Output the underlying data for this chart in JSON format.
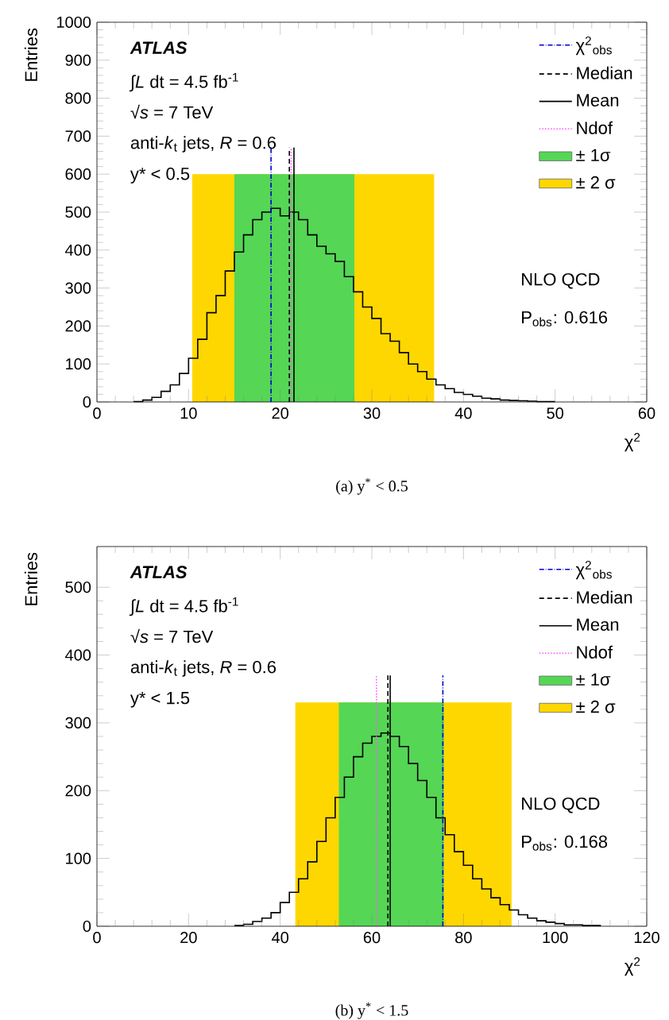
{
  "chart_data": [
    {
      "type": "histogram",
      "xlabel": "χ$^{2}$",
      "ylabel": "Entries",
      "color": "#000000",
      "bins": [
        4,
        5,
        6,
        7,
        8,
        9,
        10,
        11,
        12,
        13,
        14,
        15,
        16,
        17,
        18,
        19,
        20,
        21,
        22,
        23,
        24,
        25,
        26,
        27,
        28,
        29,
        30,
        31,
        32,
        33,
        34,
        35,
        36,
        37,
        38,
        39,
        40,
        41,
        42,
        43,
        44,
        45,
        46,
        47,
        48,
        49,
        50
      ],
      "values": [
        1,
        5,
        12,
        28,
        45,
        75,
        115,
        165,
        235,
        280,
        345,
        395,
        440,
        480,
        500,
        510,
        490,
        500,
        480,
        440,
        410,
        390,
        370,
        330,
        290,
        250,
        220,
        180,
        160,
        130,
        100,
        80,
        60,
        45,
        35,
        25,
        20,
        15,
        10,
        8,
        5,
        4,
        3,
        2,
        1,
        1
      ],
      "series": [
        {
          "name": "χ$^{2}$$_{obs}$",
          "type": "line",
          "color": "#0000cc",
          "line_style": "dashdot",
          "x": [
            19.0,
            19.0
          ],
          "values": [
            0,
            670
          ]
        },
        {
          "name": "Median",
          "type": "line",
          "color": "#000000",
          "line_style": "dashed",
          "x": [
            21.0,
            21.0
          ],
          "values": [
            0,
            670
          ]
        },
        {
          "name": "Mean",
          "type": "line",
          "color": "#000000",
          "line_style": "solid",
          "x": [
            21.5,
            21.5
          ],
          "values": [
            0,
            670
          ]
        },
        {
          "name": "Ndof",
          "type": "line",
          "color": "#ff55ff",
          "line_style": "dotted",
          "x": [
            21.2,
            21.2
          ],
          "values": [
            0,
            670
          ]
        },
        {
          "name": "± 1σ",
          "type": "area",
          "color": "#55d655",
          "x": [
            15.0,
            28.1
          ],
          "values": [
            600,
            600
          ]
        },
        {
          "name": "± 2 σ",
          "type": "area",
          "color": "#ffd700",
          "x": [
            10.4,
            36.8
          ],
          "values": [
            600,
            600
          ]
        }
      ],
      "xlim": [
        0,
        60
      ],
      "xticks": [
        0,
        10,
        20,
        30,
        40,
        50,
        60
      ],
      "ylim": [
        0,
        1000
      ],
      "yticks": [
        0,
        100,
        200,
        300,
        400,
        500,
        600,
        700,
        800,
        900,
        1000
      ],
      "grid": false,
      "legend": "top right",
      "annotations": [
        "ATLAS",
        "∫*L* dt = 4.5 fb$^{-1}$",
        "√*s* = 7 TeV",
        "anti-*k*$_{t}$  jets, *R* = 0.6",
        "y* < 0.5",
        "NLO QCD",
        "P$_{obs}$: 0.616",
        "(a) y$^{*}$ < 0.5"
      ]
    },
    {
      "type": "histogram",
      "xlabel": "χ$^{2}$",
      "ylabel": "Entries",
      "color": "#000000",
      "bins": [
        30,
        32,
        34,
        36,
        38,
        40,
        42,
        44,
        46,
        48,
        50,
        52,
        54,
        56,
        58,
        60,
        62,
        64,
        66,
        68,
        70,
        72,
        74,
        76,
        78,
        80,
        82,
        84,
        86,
        88,
        90,
        92,
        94,
        96,
        98,
        100,
        102,
        104,
        106,
        108,
        110
      ],
      "values": [
        1,
        3,
        7,
        12,
        20,
        35,
        50,
        70,
        95,
        125,
        160,
        190,
        220,
        250,
        270,
        280,
        285,
        280,
        265,
        240,
        215,
        190,
        160,
        135,
        110,
        90,
        70,
        55,
        42,
        32,
        24,
        17,
        12,
        8,
        6,
        4,
        2,
        2,
        1,
        1
      ],
      "series": [
        {
          "name": "χ$^{2}$$_{obs}$",
          "type": "line",
          "color": "#0000cc",
          "line_style": "dashdot",
          "x": [
            75.5,
            75.5
          ],
          "values": [
            0,
            370
          ]
        },
        {
          "name": "Median",
          "type": "line",
          "color": "#000000",
          "line_style": "dashed",
          "x": [
            63.5,
            63.5
          ],
          "values": [
            0,
            370
          ]
        },
        {
          "name": "Mean",
          "type": "line",
          "color": "#000000",
          "line_style": "solid",
          "x": [
            64.0,
            64.0
          ],
          "values": [
            0,
            370
          ]
        },
        {
          "name": "Ndof",
          "type": "line",
          "color": "#ff55ff",
          "line_style": "dotted",
          "x": [
            61.0,
            61.0
          ],
          "values": [
            0,
            370
          ]
        },
        {
          "name": "± 1σ",
          "type": "area",
          "color": "#55d655",
          "x": [
            52.8,
            75.7
          ],
          "values": [
            330,
            330
          ]
        },
        {
          "name": "± 2 σ",
          "type": "area",
          "color": "#ffd700",
          "x": [
            43.3,
            90.5
          ],
          "values": [
            330,
            330
          ]
        }
      ],
      "xlim": [
        0,
        120
      ],
      "xticks": [
        0,
        20,
        40,
        60,
        80,
        100,
        120
      ],
      "ylim": [
        0,
        560
      ],
      "yticks": [
        0,
        100,
        200,
        300,
        400,
        500
      ],
      "grid": false,
      "legend": "top right",
      "annotations": [
        "ATLAS",
        "∫*L* dt = 4.5 fb$^{-1}$",
        "√*s* = 7 TeV",
        "anti-*k*$_{t}$  jets, *R* = 0.6",
        "y* < 1.5",
        "NLO QCD",
        "P$_{obs}$: 0.168",
        "(b) y$^{*}$ < 1.5"
      ]
    }
  ]
}
